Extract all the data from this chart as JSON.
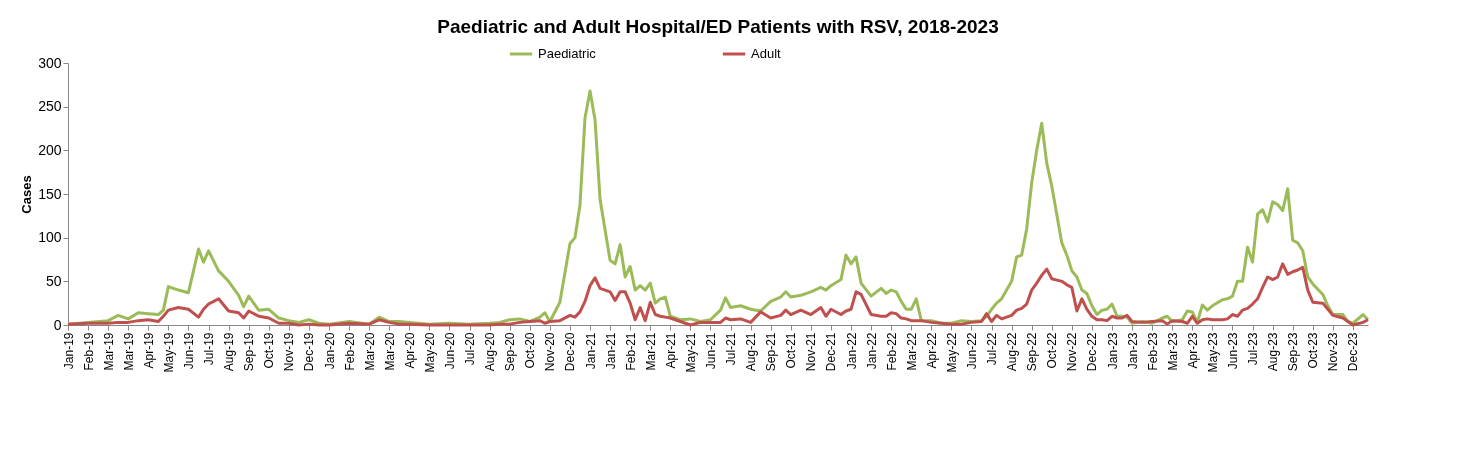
{
  "chart_data": {
    "type": "line",
    "title": "Paediatric and Adult Hospital/ED Patients with RSV, 2018-2023",
    "ylabel": "Cases",
    "x": [
      "2019-01-06",
      "2019-02-03",
      "2019-03-03",
      "2019-03-17",
      "2019-03-31",
      "2019-04-14",
      "2019-04-28",
      "2019-05-12",
      "2019-05-19",
      "2019-05-26",
      "2019-06-09",
      "2019-06-23",
      "2019-07-07",
      "2019-07-14",
      "2019-07-21",
      "2019-08-04",
      "2019-08-18",
      "2019-09-01",
      "2019-09-08",
      "2019-09-15",
      "2019-09-29",
      "2019-10-13",
      "2019-10-27",
      "2019-11-10",
      "2019-11-24",
      "2019-12-08",
      "2019-12-22",
      "2020-01-05",
      "2020-02-02",
      "2020-03-01",
      "2020-03-15",
      "2020-03-29",
      "2020-04-12",
      "2020-04-26",
      "2020-05-24",
      "2020-06-21",
      "2020-07-19",
      "2020-08-16",
      "2020-08-30",
      "2020-09-13",
      "2020-09-27",
      "2020-10-11",
      "2020-10-25",
      "2020-11-01",
      "2020-11-08",
      "2020-11-22",
      "2020-12-06",
      "2020-12-13",
      "2020-12-20",
      "2020-12-27",
      "2021-01-03",
      "2021-01-10",
      "2021-01-17",
      "2021-01-31",
      "2021-02-07",
      "2021-02-14",
      "2021-02-21",
      "2021-02-28",
      "2021-03-07",
      "2021-03-14",
      "2021-03-21",
      "2021-03-28",
      "2021-04-04",
      "2021-04-11",
      "2021-04-18",
      "2021-04-25",
      "2021-05-09",
      "2021-05-23",
      "2021-06-06",
      "2021-06-20",
      "2021-07-04",
      "2021-07-11",
      "2021-07-18",
      "2021-08-01",
      "2021-08-15",
      "2021-08-29",
      "2021-09-12",
      "2021-09-26",
      "2021-10-03",
      "2021-10-10",
      "2021-10-24",
      "2021-11-07",
      "2021-11-21",
      "2021-11-28",
      "2021-12-05",
      "2021-12-19",
      "2021-12-26",
      "2022-01-02",
      "2022-01-09",
      "2022-01-16",
      "2022-01-30",
      "2022-02-13",
      "2022-02-20",
      "2022-02-27",
      "2022-03-06",
      "2022-03-13",
      "2022-03-20",
      "2022-03-27",
      "2022-04-03",
      "2022-04-10",
      "2022-04-24",
      "2022-05-08",
      "2022-05-22",
      "2022-06-05",
      "2022-06-19",
      "2022-07-03",
      "2022-07-10",
      "2022-07-17",
      "2022-07-24",
      "2022-07-31",
      "2022-08-14",
      "2022-08-21",
      "2022-08-28",
      "2022-09-04",
      "2022-09-11",
      "2022-09-18",
      "2022-09-25",
      "2022-10-02",
      "2022-10-09",
      "2022-10-23",
      "2022-10-30",
      "2022-11-06",
      "2022-11-13",
      "2022-11-20",
      "2022-11-27",
      "2022-12-04",
      "2022-12-11",
      "2022-12-18",
      "2022-12-25",
      "2023-01-01",
      "2023-01-08",
      "2023-01-15",
      "2023-01-22",
      "2023-01-29",
      "2023-02-12",
      "2023-02-26",
      "2023-03-12",
      "2023-03-19",
      "2023-03-26",
      "2023-04-09",
      "2023-04-16",
      "2023-04-23",
      "2023-04-30",
      "2023-05-07",
      "2023-05-14",
      "2023-05-21",
      "2023-06-04",
      "2023-06-11",
      "2023-06-18",
      "2023-06-25",
      "2023-07-02",
      "2023-07-09",
      "2023-07-16",
      "2023-07-23",
      "2023-07-30",
      "2023-08-06",
      "2023-08-13",
      "2023-08-20",
      "2023-08-27",
      "2023-09-03",
      "2023-09-10",
      "2023-09-17",
      "2023-09-24",
      "2023-10-01",
      "2023-10-08",
      "2023-10-22",
      "2023-10-29",
      "2023-11-05",
      "2023-11-19",
      "2023-11-26",
      "2023-12-03",
      "2023-12-17",
      "2023-12-24"
    ],
    "series": [
      {
        "name": "Paediatric",
        "color": "#9bbb59",
        "values": [
          1,
          3,
          5,
          11,
          7,
          14,
          13,
          12,
          17,
          44,
          40,
          37,
          87,
          72,
          85,
          62,
          50,
          34,
          21,
          33,
          17,
          18,
          8,
          5,
          3,
          6,
          2,
          1,
          4,
          1,
          9,
          4,
          4,
          3,
          1,
          2,
          1,
          2,
          3,
          6,
          7,
          4,
          9,
          14,
          4,
          26,
          93,
          100,
          137,
          237,
          268,
          235,
          144,
          74,
          70,
          92,
          55,
          67,
          40,
          45,
          40,
          48,
          25,
          30,
          32,
          10,
          6,
          7,
          4,
          6,
          17,
          31,
          20,
          22,
          18,
          16,
          27,
          32,
          38,
          32,
          34,
          38,
          43,
          40,
          45,
          52,
          80,
          70,
          78,
          48,
          33,
          42,
          36,
          40,
          38,
          27,
          18,
          18,
          30,
          5,
          5,
          2,
          2,
          5,
          4,
          5,
          10,
          18,
          25,
          30,
          50,
          78,
          80,
          110,
          163,
          200,
          231,
          185,
          159,
          94,
          80,
          62,
          55,
          40,
          36,
          22,
          12,
          17,
          18,
          24,
          10,
          10,
          9,
          2,
          4,
          2,
          8,
          10,
          4,
          6,
          16,
          15,
          3,
          23,
          17,
          22,
          29,
          30,
          33,
          50,
          50,
          89,
          72,
          127,
          132,
          118,
          141,
          138,
          131,
          156,
          97,
          94,
          85,
          55,
          47,
          35,
          22,
          12,
          12,
          4,
          2,
          12,
          6
        ]
      },
      {
        "name": "Adult",
        "color": "#c0504d",
        "values": [
          1,
          2,
          2,
          3,
          3,
          5,
          6,
          4,
          10,
          17,
          20,
          18,
          9,
          18,
          24,
          30,
          16,
          14,
          8,
          16,
          10,
          8,
          2,
          2,
          0,
          1,
          0,
          0,
          2,
          1,
          6,
          3,
          1,
          1,
          0,
          0,
          0,
          0,
          1,
          1,
          3,
          4,
          5,
          2,
          4,
          5,
          11,
          9,
          15,
          27,
          45,
          54,
          42,
          38,
          28,
          38,
          38,
          25,
          6,
          20,
          5,
          26,
          12,
          10,
          9,
          8,
          4,
          0,
          3,
          3,
          3,
          8,
          6,
          7,
          3,
          15,
          8,
          11,
          17,
          12,
          17,
          12,
          20,
          10,
          18,
          12,
          16,
          18,
          38,
          35,
          12,
          10,
          10,
          14,
          13,
          8,
          7,
          5,
          5,
          5,
          3,
          2,
          1,
          1,
          3,
          4,
          13,
          4,
          11,
          7,
          11,
          17,
          19,
          24,
          40,
          48,
          57,
          64,
          53,
          50,
          46,
          43,
          16,
          30,
          18,
          10,
          6,
          6,
          5,
          10,
          8,
          8,
          11,
          4,
          3,
          4,
          5,
          1,
          5,
          4,
          2,
          10,
          2,
          6,
          7,
          6,
          6,
          7,
          12,
          10,
          17,
          19,
          24,
          30,
          43,
          55,
          52,
          55,
          70,
          58,
          61,
          63,
          66,
          40,
          26,
          25,
          18,
          11,
          8,
          4,
          0,
          3,
          6
        ]
      }
    ],
    "xlim": [
      "2019-01-06",
      "2023-12-24"
    ],
    "xticks": [
      {
        "value": "2019-01-06",
        "label": "Jan-19"
      },
      {
        "value": "2019-02-03",
        "label": "Feb-19"
      },
      {
        "value": "2019-03-03",
        "label": "Mar-19"
      },
      {
        "value": "2019-03-31",
        "label": "Mar-19"
      },
      {
        "value": "2019-04-28",
        "label": "Apr-19"
      },
      {
        "value": "2019-05-26",
        "label": "May-19"
      },
      {
        "value": "2019-06-23",
        "label": "Jun-19"
      },
      {
        "value": "2019-07-21",
        "label": "Jul-19"
      },
      {
        "value": "2019-08-18",
        "label": "Aug-19"
      },
      {
        "value": "2019-09-15",
        "label": "Sep-19"
      },
      {
        "value": "2019-10-13",
        "label": "Oct-19"
      },
      {
        "value": "2019-11-10",
        "label": "Nov-19"
      },
      {
        "value": "2019-12-08",
        "label": "Dec-19"
      },
      {
        "value": "2020-01-05",
        "label": "Jan-20"
      },
      {
        "value": "2020-02-02",
        "label": "Feb-20"
      },
      {
        "value": "2020-03-01",
        "label": "Mar-20"
      },
      {
        "value": "2020-03-29",
        "label": "Mar-20"
      },
      {
        "value": "2020-04-26",
        "label": "Apr-20"
      },
      {
        "value": "2020-05-24",
        "label": "May-20"
      },
      {
        "value": "2020-06-21",
        "label": "Jun-20"
      },
      {
        "value": "2020-07-19",
        "label": "Jul-20"
      },
      {
        "value": "2020-08-16",
        "label": "Aug-20"
      },
      {
        "value": "2020-09-13",
        "label": "Sep-20"
      },
      {
        "value": "2020-10-11",
        "label": "Oct-20"
      },
      {
        "value": "2020-11-08",
        "label": "Nov-20"
      },
      {
        "value": "2020-12-06",
        "label": "Dec-20"
      },
      {
        "value": "2021-01-03",
        "label": "Jan-21"
      },
      {
        "value": "2021-01-31",
        "label": "Jan-21"
      },
      {
        "value": "2021-02-28",
        "label": "Feb-21"
      },
      {
        "value": "2021-03-28",
        "label": "Mar-21"
      },
      {
        "value": "2021-04-25",
        "label": "Apr-21"
      },
      {
        "value": "2021-05-23",
        "label": "May-21"
      },
      {
        "value": "2021-06-20",
        "label": "Jun-21"
      },
      {
        "value": "2021-07-18",
        "label": "Jul-21"
      },
      {
        "value": "2021-08-15",
        "label": "Aug-21"
      },
      {
        "value": "2021-09-12",
        "label": "Sep-21"
      },
      {
        "value": "2021-10-10",
        "label": "Oct-21"
      },
      {
        "value": "2021-11-07",
        "label": "Nov-21"
      },
      {
        "value": "2021-12-05",
        "label": "Dec-21"
      },
      {
        "value": "2022-01-02",
        "label": "Jan-22"
      },
      {
        "value": "2022-01-30",
        "label": "Jan-22"
      },
      {
        "value": "2022-02-27",
        "label": "Feb-22"
      },
      {
        "value": "2022-03-27",
        "label": "Mar-22"
      },
      {
        "value": "2022-04-24",
        "label": "Apr-22"
      },
      {
        "value": "2022-05-22",
        "label": "May-22"
      },
      {
        "value": "2022-06-19",
        "label": "Jun-22"
      },
      {
        "value": "2022-07-17",
        "label": "Jul-22"
      },
      {
        "value": "2022-08-14",
        "label": "Aug-22"
      },
      {
        "value": "2022-09-11",
        "label": "Sep-22"
      },
      {
        "value": "2022-10-09",
        "label": "Oct-22"
      },
      {
        "value": "2022-11-06",
        "label": "Nov-22"
      },
      {
        "value": "2022-12-04",
        "label": "Dec-22"
      },
      {
        "value": "2023-01-01",
        "label": "Jan-23"
      },
      {
        "value": "2023-01-29",
        "label": "Jan-23"
      },
      {
        "value": "2023-02-26",
        "label": "Feb-23"
      },
      {
        "value": "2023-03-26",
        "label": "Mar-23"
      },
      {
        "value": "2023-04-23",
        "label": "Apr-23"
      },
      {
        "value": "2023-05-21",
        "label": "May-23"
      },
      {
        "value": "2023-06-18",
        "label": "Jun-23"
      },
      {
        "value": "2023-07-16",
        "label": "Jul-23"
      },
      {
        "value": "2023-08-13",
        "label": "Aug-23"
      },
      {
        "value": "2023-09-10",
        "label": "Sep-23"
      },
      {
        "value": "2023-10-08",
        "label": "Oct-23"
      },
      {
        "value": "2023-11-05",
        "label": "Nov-23"
      },
      {
        "value": "2023-12-03",
        "label": "Dec-23"
      }
    ],
    "ylim": [
      0,
      300
    ],
    "yticks": [
      0,
      50,
      100,
      150,
      200,
      250,
      300
    ],
    "grid": false,
    "legend": "top",
    "marker": "none",
    "line_style": "solid"
  }
}
